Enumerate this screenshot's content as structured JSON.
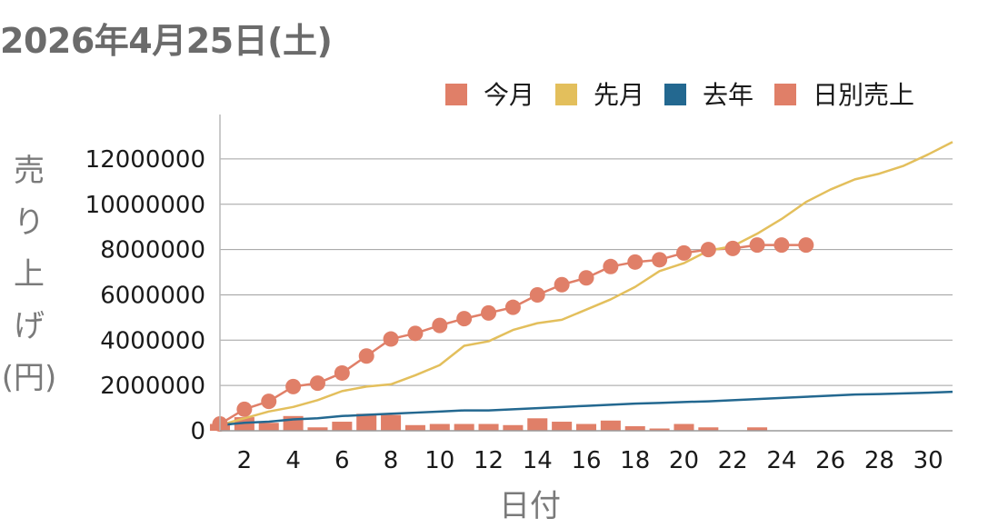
{
  "header": {
    "title": "2026年4月25日(土)"
  },
  "chart_data": {
    "type": "line",
    "title": "",
    "xlabel": "日付",
    "ylabel": "売り上げ(円)",
    "xlim": [
      1,
      31
    ],
    "ylim": [
      0,
      13000000
    ],
    "x_ticks": [
      2,
      4,
      6,
      8,
      10,
      12,
      14,
      16,
      18,
      20,
      22,
      24,
      26,
      28,
      30
    ],
    "y_ticks": [
      0,
      2000000,
      4000000,
      6000000,
      8000000,
      10000000,
      12000000
    ],
    "grid": true,
    "legend_position": "top-right",
    "legend": [
      {
        "name": "今月",
        "color": "#e07f68"
      },
      {
        "name": "先月",
        "color": "#e3bf5c"
      },
      {
        "name": "去年",
        "color": "#236890"
      },
      {
        "name": "日別売上",
        "color": "#e07f68"
      }
    ],
    "series": [
      {
        "name": "今月",
        "type": "line-markers",
        "color": "#e07f68",
        "x": [
          1,
          2,
          3,
          4,
          5,
          6,
          7,
          8,
          9,
          10,
          11,
          12,
          13,
          14,
          15,
          16,
          17,
          18,
          19,
          20,
          21,
          22,
          23,
          24,
          25
        ],
        "values": [
          300000,
          950000,
          1300000,
          1950000,
          2100000,
          2550000,
          3300000,
          4050000,
          4300000,
          4650000,
          4950000,
          5200000,
          5450000,
          6000000,
          6450000,
          6750000,
          7250000,
          7450000,
          7550000,
          7850000,
          8000000,
          8050000,
          8200000,
          8200000,
          8200000
        ]
      },
      {
        "name": "先月",
        "type": "line",
        "color": "#e3bf5c",
        "x": [
          1,
          2,
          3,
          4,
          5,
          6,
          7,
          8,
          9,
          10,
          11,
          12,
          13,
          14,
          15,
          16,
          17,
          18,
          19,
          20,
          21,
          22,
          23,
          24,
          25,
          26,
          27,
          28,
          29,
          30,
          31
        ],
        "values": [
          250000,
          550000,
          850000,
          1050000,
          1350000,
          1750000,
          1950000,
          2050000,
          2450000,
          2900000,
          3750000,
          3950000,
          4450000,
          4750000,
          4900000,
          5350000,
          5800000,
          6350000,
          7050000,
          7400000,
          7950000,
          8150000,
          8700000,
          9350000,
          10100000,
          10650000,
          11100000,
          11350000,
          11700000,
          12200000,
          12750000
        ]
      },
      {
        "name": "去年",
        "type": "line",
        "color": "#236890",
        "x": [
          1,
          2,
          3,
          4,
          5,
          6,
          7,
          8,
          9,
          10,
          11,
          12,
          13,
          14,
          15,
          16,
          17,
          18,
          19,
          20,
          21,
          22,
          23,
          24,
          25,
          26,
          27,
          28,
          29,
          30,
          31
        ],
        "values": [
          250000,
          350000,
          400000,
          500000,
          550000,
          650000,
          700000,
          750000,
          800000,
          850000,
          900000,
          900000,
          950000,
          1000000,
          1050000,
          1100000,
          1150000,
          1200000,
          1230000,
          1270000,
          1300000,
          1350000,
          1400000,
          1450000,
          1500000,
          1550000,
          1600000,
          1620000,
          1650000,
          1680000,
          1720000
        ]
      },
      {
        "name": "日別売上",
        "type": "bar",
        "color": "#e07f68",
        "x": [
          1,
          2,
          3,
          4,
          5,
          6,
          7,
          8,
          9,
          10,
          11,
          12,
          13,
          14,
          15,
          16,
          17,
          18,
          19,
          20,
          21,
          22,
          23,
          24,
          25
        ],
        "values": [
          300000,
          600000,
          350000,
          650000,
          150000,
          400000,
          750000,
          700000,
          250000,
          300000,
          300000,
          300000,
          250000,
          550000,
          400000,
          300000,
          450000,
          200000,
          100000,
          300000,
          150000,
          0,
          150000,
          0,
          0
        ]
      }
    ]
  }
}
